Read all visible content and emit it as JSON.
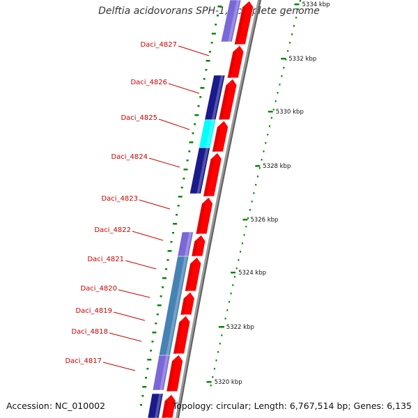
{
  "title": "Delftia acidovorans SPH-1, complete genome",
  "accession": "Accession: NC_010002",
  "topology": "Topology: circular; Length: 6,767,514 bp; Genes: 6,135",
  "colors": {
    "forward_cds": "#ff0000",
    "gene_label": "#cc0000",
    "gc_green": "#008800",
    "dark_blue": "#1a1a8c",
    "violet": "#7b68d8",
    "cyan": "#00ffff",
    "steel_blue": "#4682b4",
    "backbone": "#888888"
  },
  "gene_labels": [
    "Daci_4827",
    "Daci_4826",
    "Daci_4825",
    "Daci_4824",
    "Daci_4823",
    "Daci_4822",
    "Daci_4821",
    "Daci_4820",
    "Daci_4819",
    "Daci_4818",
    "Daci_4817"
  ],
  "scale_labels": [
    "5334 kbp",
    "5332 kbp",
    "5330 kbp",
    "5328 kbp",
    "5326 kbp",
    "5324 kbp",
    "5322 kbp",
    "5320 kbp"
  ]
}
